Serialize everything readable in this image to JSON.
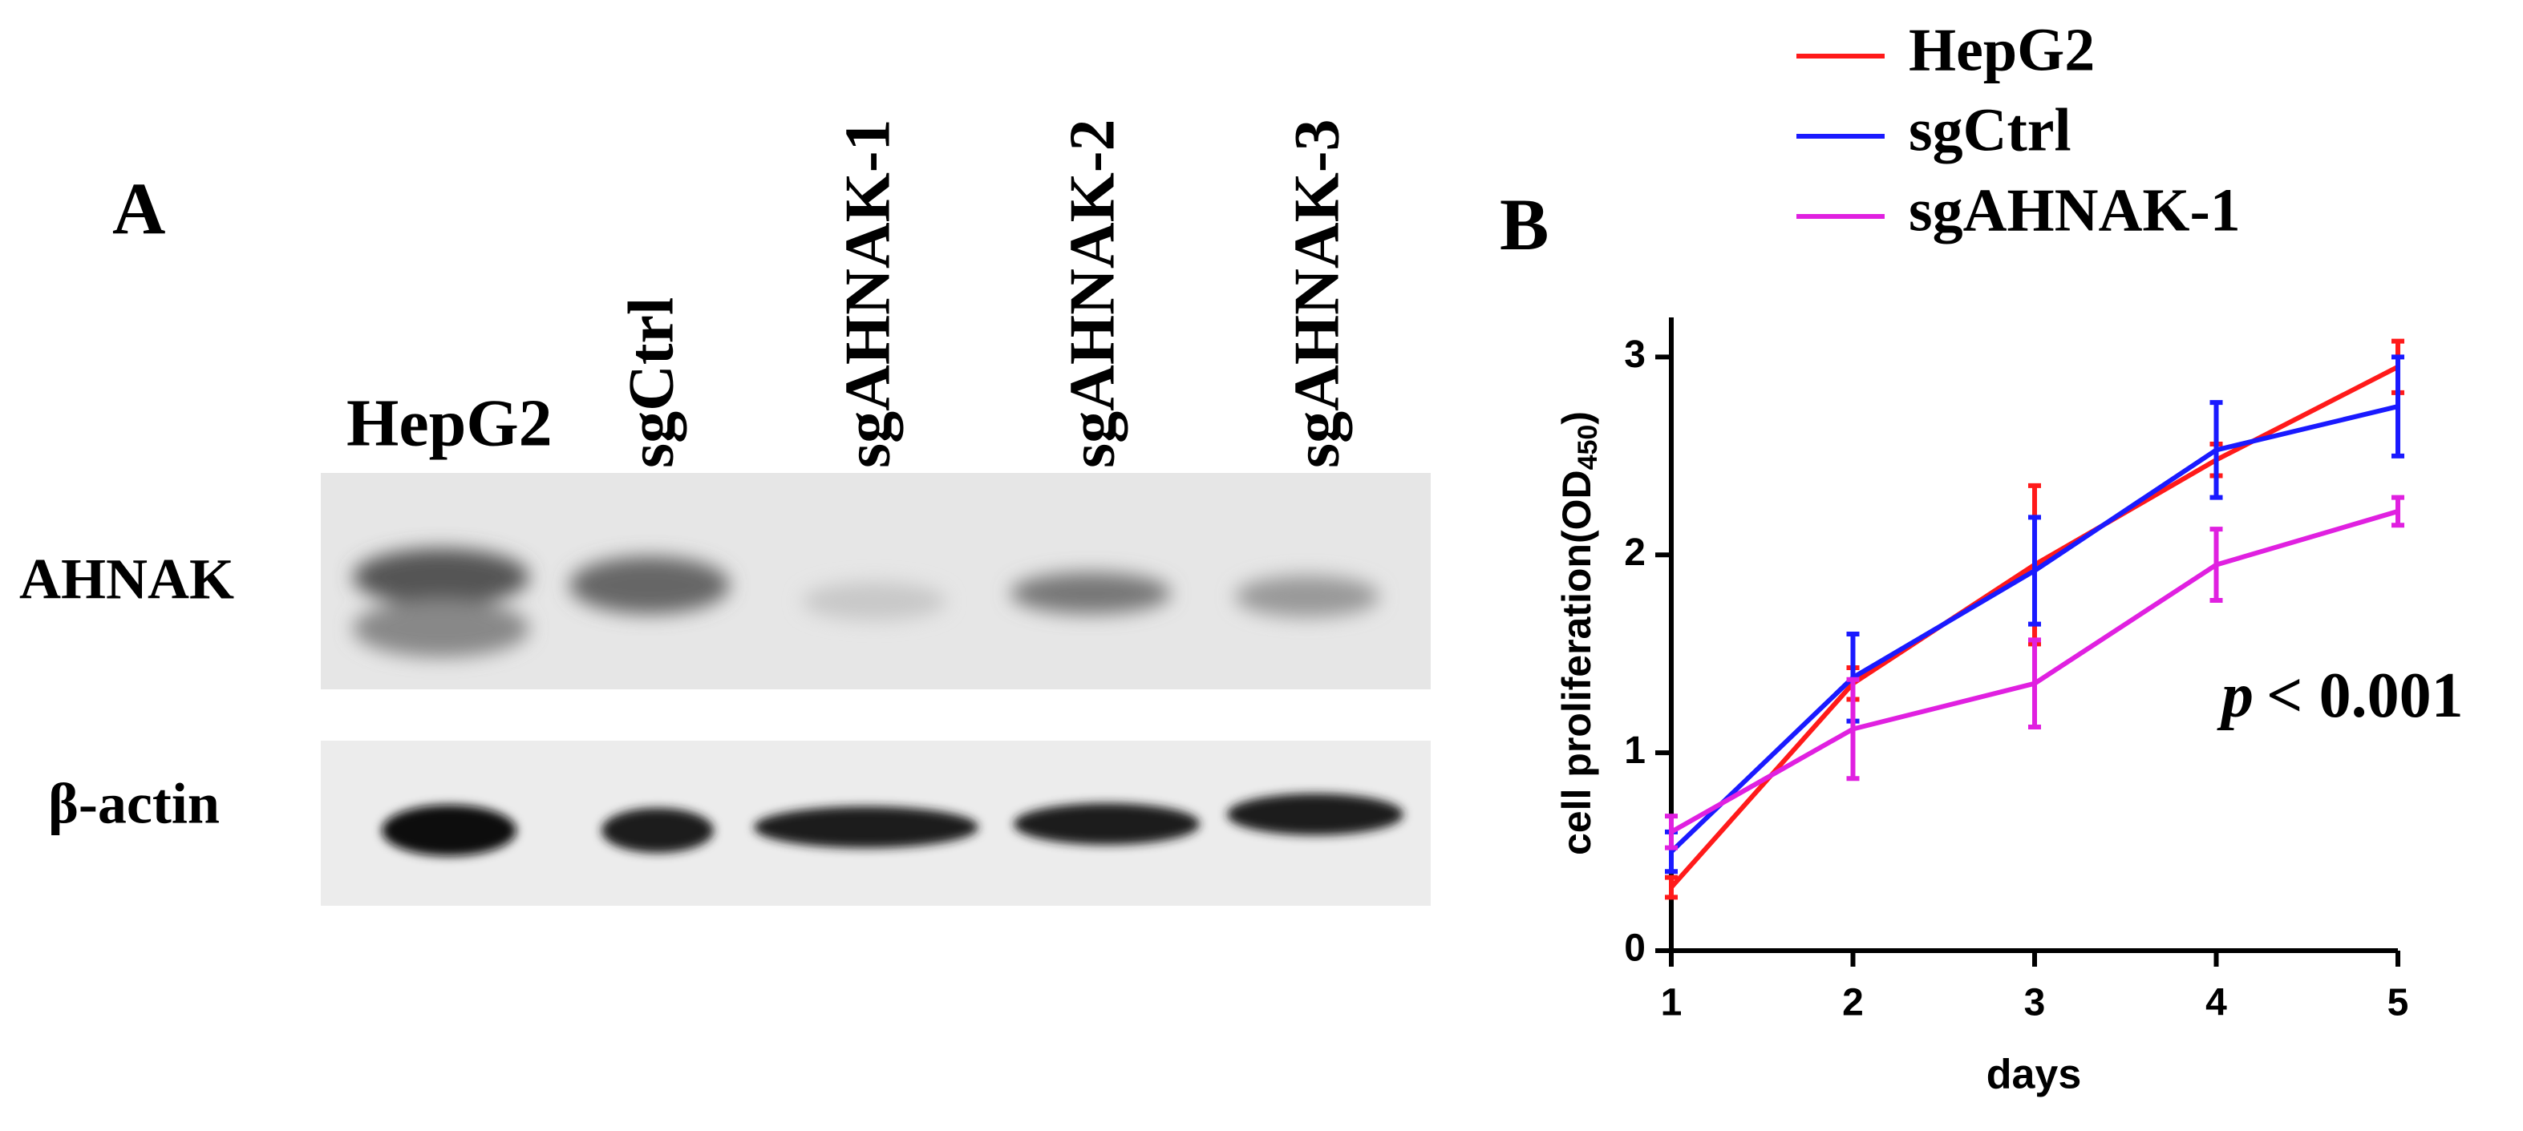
{
  "panel_a": {
    "label": "A",
    "lanes": [
      "HepG2",
      "sgCtrl",
      "sgAHNAK-1",
      "sgAHNAK-2",
      "sgAHNAK-3"
    ],
    "rows": [
      "AHNAK",
      "β-actin"
    ]
  },
  "chart_data": {
    "type": "line",
    "label": "B",
    "x": [
      1,
      2,
      3,
      4,
      5
    ],
    "xlabel": "days",
    "ylabel": "cell proliferation(OD",
    "ylabel_subscript": "450",
    "ylabel_end": ")",
    "xlim": [
      1,
      5
    ],
    "ylim": [
      0,
      3.2
    ],
    "xticks": [
      1,
      2,
      3,
      4,
      5
    ],
    "yticks": [
      0,
      1,
      2,
      3
    ],
    "annotation_italic": "p",
    "annotation": "< 0.001",
    "series": [
      {
        "name": "HepG2",
        "color": "#ff1a1a",
        "values": [
          0.32,
          1.35,
          1.95,
          2.48,
          2.95
        ],
        "errors": [
          0.05,
          0.08,
          0.4,
          0.08,
          0.13
        ]
      },
      {
        "name": "sgCtrl",
        "color": "#1a1aff",
        "values": [
          0.5,
          1.38,
          1.92,
          2.53,
          2.75
        ],
        "errors": [
          0.1,
          0.22,
          0.27,
          0.24,
          0.25
        ]
      },
      {
        "name": "sgAHNAK-1",
        "color": "#e020e0",
        "values": [
          0.6,
          1.12,
          1.35,
          1.95,
          2.22
        ],
        "errors": [
          0.08,
          0.25,
          0.22,
          0.18,
          0.07
        ]
      }
    ]
  }
}
